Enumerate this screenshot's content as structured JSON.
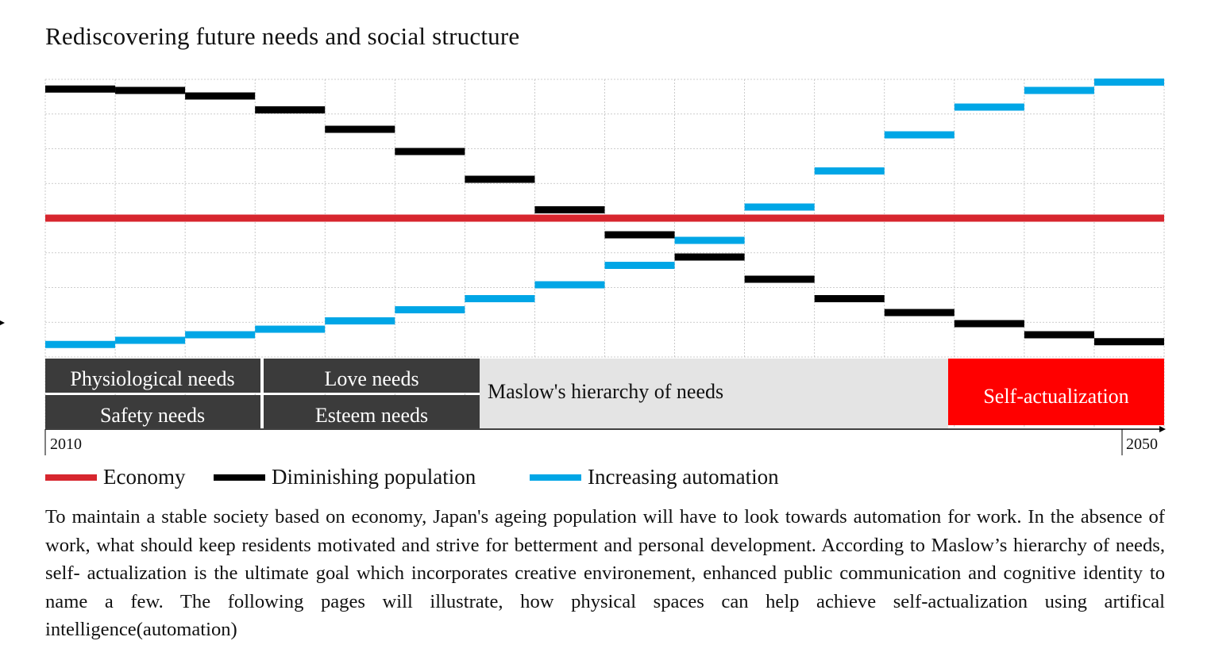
{
  "title": "Rediscovering future needs and social structure",
  "description": "To maintain a stable society based on economy, Japan's ageing population will have to look towards automation for work. In the absence of work, what should keep residents motivated and strive for betterment and personal development. According to Maslow’s hierarchy of needs, self- actualization is the ultimate goal which incorporates creative environement, enhanced public communication and cognitive identity to name a few. The following pages will illustrate, how physical spaces can help achieve self-actualization using artifical intelligence(automation)",
  "legend": [
    {
      "label": "Economy",
      "color": "#d7262e"
    },
    {
      "label": "Diminishing population",
      "color": "#000000"
    },
    {
      "label": "Increasing automation",
      "color": "#00a6e6"
    }
  ],
  "hierarchy": {
    "physiological": "Physiological needs",
    "safety": "Safety needs",
    "love": "Love needs",
    "esteem": "Esteem needs",
    "maslow": "Maslow's hierarchy of needs",
    "self_actualization": "Self-actualization",
    "dark_color": "#3b3b3b",
    "light_color": "#e4e4e4",
    "highlight_color": "#ff0000"
  },
  "chart_data": {
    "type": "line",
    "title": "Rediscovering future needs and social structure",
    "x_start_label": "2010",
    "x_end_label": "2050",
    "steps": 16,
    "ylim": [
      0,
      100
    ],
    "grid": true,
    "series": [
      {
        "name": "Economy",
        "color": "#d7262e",
        "values": [
          50,
          50,
          50,
          50,
          50,
          50,
          50,
          50,
          50,
          50,
          50,
          50,
          50,
          50,
          50,
          50
        ]
      },
      {
        "name": "Diminishing population",
        "color": "#000000",
        "values": [
          96.5,
          96,
          94,
          89,
          82,
          74,
          64,
          53,
          44,
          36,
          28,
          21,
          16,
          12,
          8,
          5.5
        ]
      },
      {
        "name": "Increasing automation",
        "color": "#00a6e6",
        "values": [
          4.5,
          6,
          8,
          10,
          13,
          17,
          21,
          26,
          33,
          42,
          54,
          67,
          80,
          90,
          96,
          99
        ]
      }
    ]
  }
}
